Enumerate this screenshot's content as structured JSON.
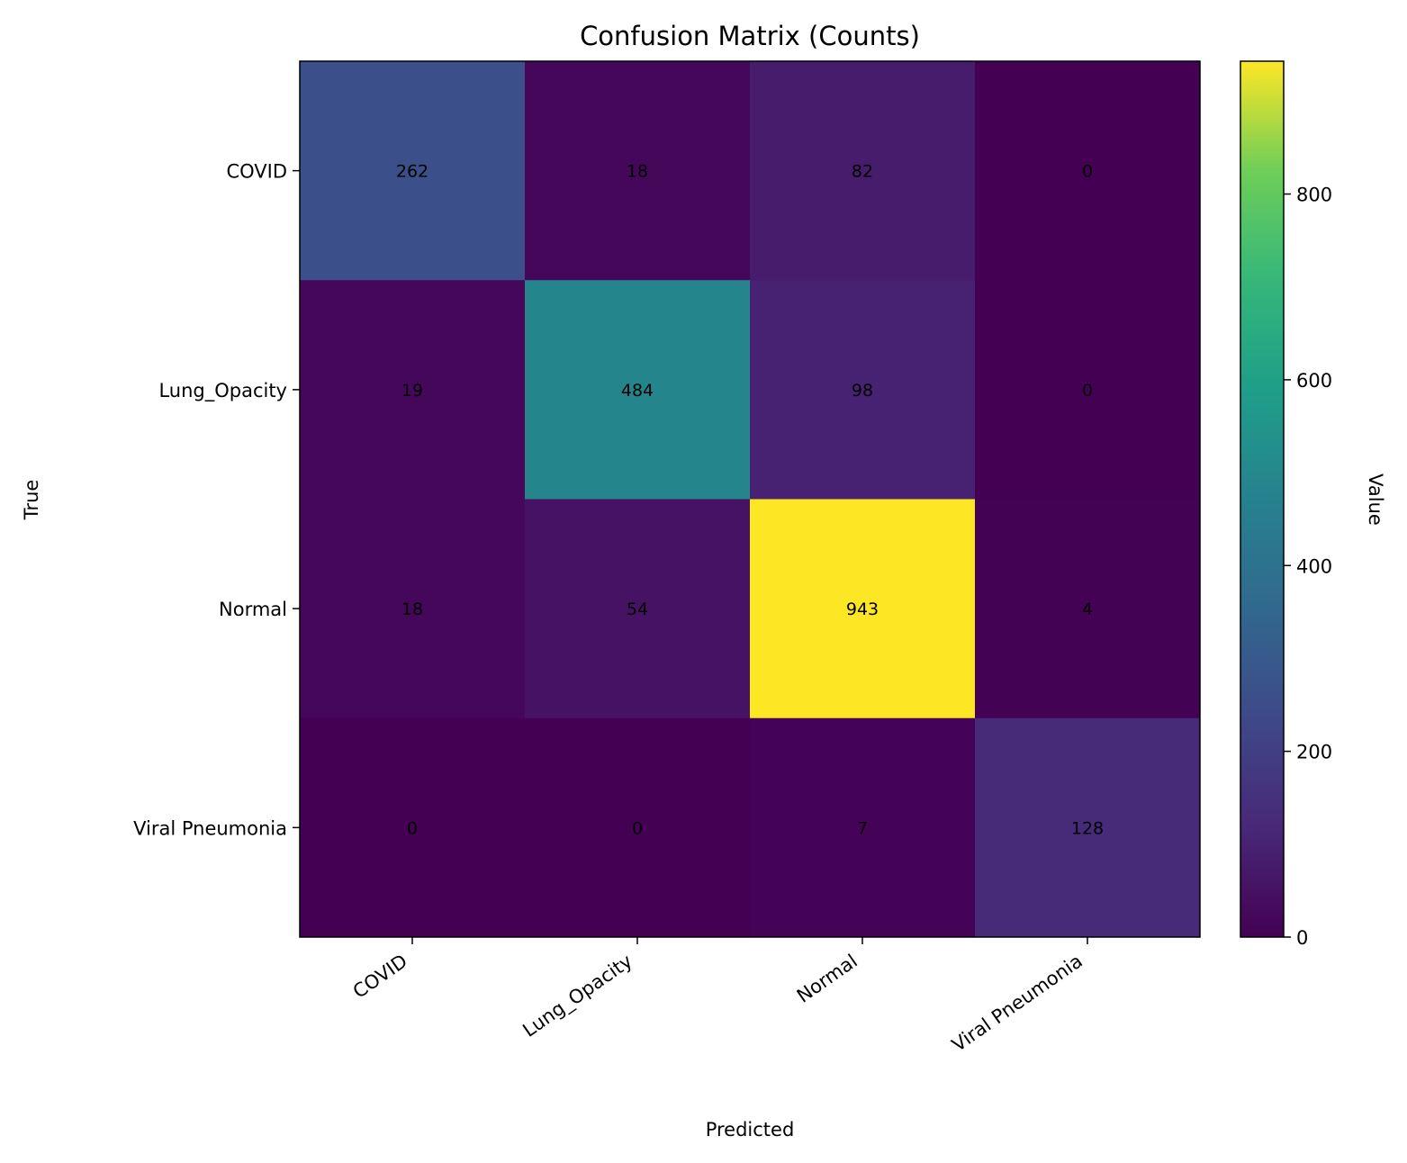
{
  "chart_data": {
    "type": "heatmap",
    "title": "Confusion Matrix (Counts)",
    "xlabel": "Predicted",
    "ylabel": "True",
    "x_categories": [
      "COVID",
      "Lung_Opacity",
      "Normal",
      "Viral Pneumonia"
    ],
    "y_categories": [
      "COVID",
      "Lung_Opacity",
      "Normal",
      "Viral Pneumonia"
    ],
    "values": [
      [
        262,
        18,
        82,
        0
      ],
      [
        19,
        484,
        98,
        0
      ],
      [
        18,
        54,
        943,
        4
      ],
      [
        0,
        0,
        7,
        128
      ]
    ],
    "colorbar": {
      "label": "Value",
      "colormap": "viridis",
      "range": [
        0,
        943
      ],
      "ticks": [
        0,
        200,
        400,
        600,
        800
      ]
    },
    "grid": false
  }
}
